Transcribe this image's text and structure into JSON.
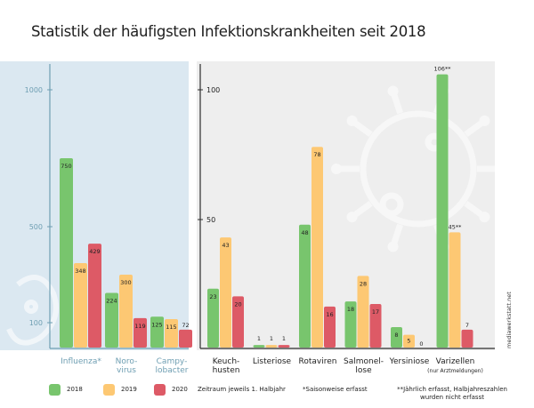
{
  "title": "Statistik der häufigsten Infektionskrankheiten seit 2018",
  "credit": "mediawerkstatt.net",
  "colors": {
    "2018": "#78c56d",
    "2019": "#fdc873",
    "2020": "#dd5a66",
    "left_panel_bg": "#dbe8f1",
    "left_axis": "#6e9eb2",
    "right_panel_bg": "#eeeeee",
    "right_axis": "#2d2d2d"
  },
  "legend": {
    "items": [
      {
        "label": "2018",
        "color": "#78c56d"
      },
      {
        "label": "2019",
        "color": "#fdc873"
      },
      {
        "label": "2020",
        "color": "#dd5a66"
      }
    ],
    "period_note": "Zeitraum jeweils 1. Halbjahr"
  },
  "notes": {
    "seasonal": "*Saisonweise erfasst",
    "yearly_line1": "**Jährlich erfasst, Halbjahreszahlen",
    "yearly_line2": "wurden nicht erfasst"
  },
  "chart_data": [
    {
      "type": "bar",
      "panel": "left",
      "ylim": [
        0,
        1100
      ],
      "yticks": [
        100,
        500,
        1000
      ],
      "series_names": [
        "2018",
        "2019",
        "2020"
      ],
      "categories": [
        {
          "label_lines": [
            "Influenza*"
          ],
          "values": [
            750,
            348,
            429
          ],
          "labels": [
            "750",
            "348",
            "429"
          ]
        },
        {
          "label_lines": [
            "Noro-",
            "virus"
          ],
          "values": [
            224,
            300,
            119
          ],
          "labels": [
            "224",
            "300",
            "119"
          ]
        },
        {
          "label_lines": [
            "Campy-",
            "lobacter"
          ],
          "values": [
            125,
            115,
            72
          ],
          "labels": [
            "125",
            "115",
            "72"
          ]
        }
      ]
    },
    {
      "type": "bar",
      "panel": "right",
      "ylim": [
        0,
        110
      ],
      "yticks": [
        50,
        100
      ],
      "series_names": [
        "2018",
        "2019",
        "2020"
      ],
      "categories": [
        {
          "label_lines": [
            "Keuch-",
            "husten"
          ],
          "values": [
            23,
            43,
            20
          ],
          "labels": [
            "23",
            "43",
            "20"
          ]
        },
        {
          "label_lines": [
            "Listeriose"
          ],
          "values": [
            1,
            1,
            1
          ],
          "labels": [
            "1",
            "1",
            "1"
          ]
        },
        {
          "label_lines": [
            "Rotaviren"
          ],
          "values": [
            48,
            78,
            16
          ],
          "labels": [
            "48",
            "78",
            "16"
          ]
        },
        {
          "label_lines": [
            "Salmonel-",
            "lose"
          ],
          "values": [
            18,
            28,
            17
          ],
          "labels": [
            "18",
            "28",
            "17"
          ]
        },
        {
          "label_lines": [
            "Yersiniose"
          ],
          "values": [
            8,
            5,
            0
          ],
          "labels": [
            "8",
            "5",
            "0"
          ]
        },
        {
          "label_lines": [
            "Varizellen",
            "(nur Arztmeldungen)"
          ],
          "values": [
            106,
            45,
            7
          ],
          "labels": [
            "106**",
            "45**",
            "7"
          ]
        }
      ]
    }
  ]
}
